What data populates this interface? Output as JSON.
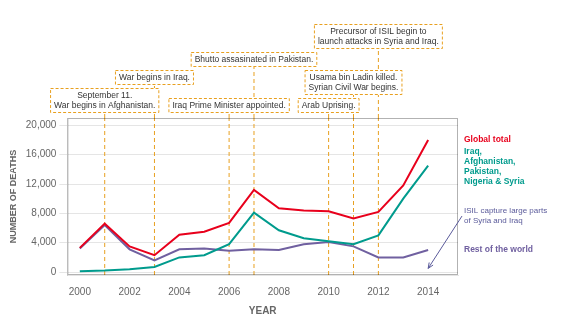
{
  "chart_data": {
    "type": "line",
    "x_label": "YEAR",
    "y_label": "NUMBER OF DEATHS",
    "x": [
      2000,
      2001,
      2002,
      2003,
      2004,
      2005,
      2006,
      2007,
      2008,
      2009,
      2010,
      2011,
      2012,
      2013,
      2014
    ],
    "series": [
      {
        "name": "Global total",
        "color": "#e8001c",
        "values": [
          3300,
          6600,
          3500,
          2300,
          5100,
          5500,
          6700,
          11200,
          8700,
          8400,
          8300,
          7300,
          8200,
          11800,
          18000
        ]
      },
      {
        "name": "Iraq,\nAfghanistan,\nPakistan,\nNigeria & Syria",
        "color": "#009b8d",
        "values": [
          100,
          200,
          400,
          700,
          2000,
          2300,
          3800,
          8100,
          5700,
          4600,
          4200,
          3800,
          5000,
          10000,
          14500
        ]
      },
      {
        "name": "Rest of the world",
        "color": "#7060a0",
        "values": [
          3200,
          6400,
          3100,
          1600,
          3100,
          3200,
          2900,
          3100,
          3000,
          3800,
          4100,
          3500,
          2000,
          2000,
          3000
        ]
      }
    ],
    "xlim": [
      1999.5,
      2015.2
    ],
    "ylim": [
      -400,
      21000
    ],
    "xticks": [
      2000,
      2002,
      2004,
      2006,
      2008,
      2010,
      2012,
      2014
    ],
    "yticks": [
      0,
      {
        "value": 4000,
        "label": "4,000"
      },
      {
        "value": 8000,
        "label": "8,000"
      },
      {
        "value": 12000,
        "label": "12,000"
      },
      {
        "value": 16000,
        "label": "16,000"
      },
      {
        "value": 20000,
        "label": "20,000"
      }
    ],
    "grid": "y",
    "annotations": [
      {
        "text": "September 11.\nWar begins in Afghanistan.",
        "x": 2001,
        "color": "#e8a020"
      },
      {
        "text": "War begins in Iraq.",
        "x": 2003,
        "color": "#e8a020"
      },
      {
        "text": "Iraq Prime Minister appointed.",
        "x": 2006,
        "color": "#e8a020"
      },
      {
        "text": "Bhutto assasinated in Pakistan.",
        "x": 2007,
        "color": "#e8a020"
      },
      {
        "text": "Arab Uprising.",
        "x": 2010,
        "color": "#e8a020"
      },
      {
        "text": "Usama bin Ladin killed.\nSyrian Civil War begins.",
        "x": 2011,
        "color": "#e8a020"
      },
      {
        "text": "Precursor of ISIL begin to\nlaunch attacks in Syria and Iraq.",
        "x": 2012,
        "color": "#e8a020"
      },
      {
        "text": "ISIL capture large parts\nof Syria and Iraq",
        "x": 2014,
        "y": 500,
        "color": "#5a5a9a"
      }
    ]
  }
}
